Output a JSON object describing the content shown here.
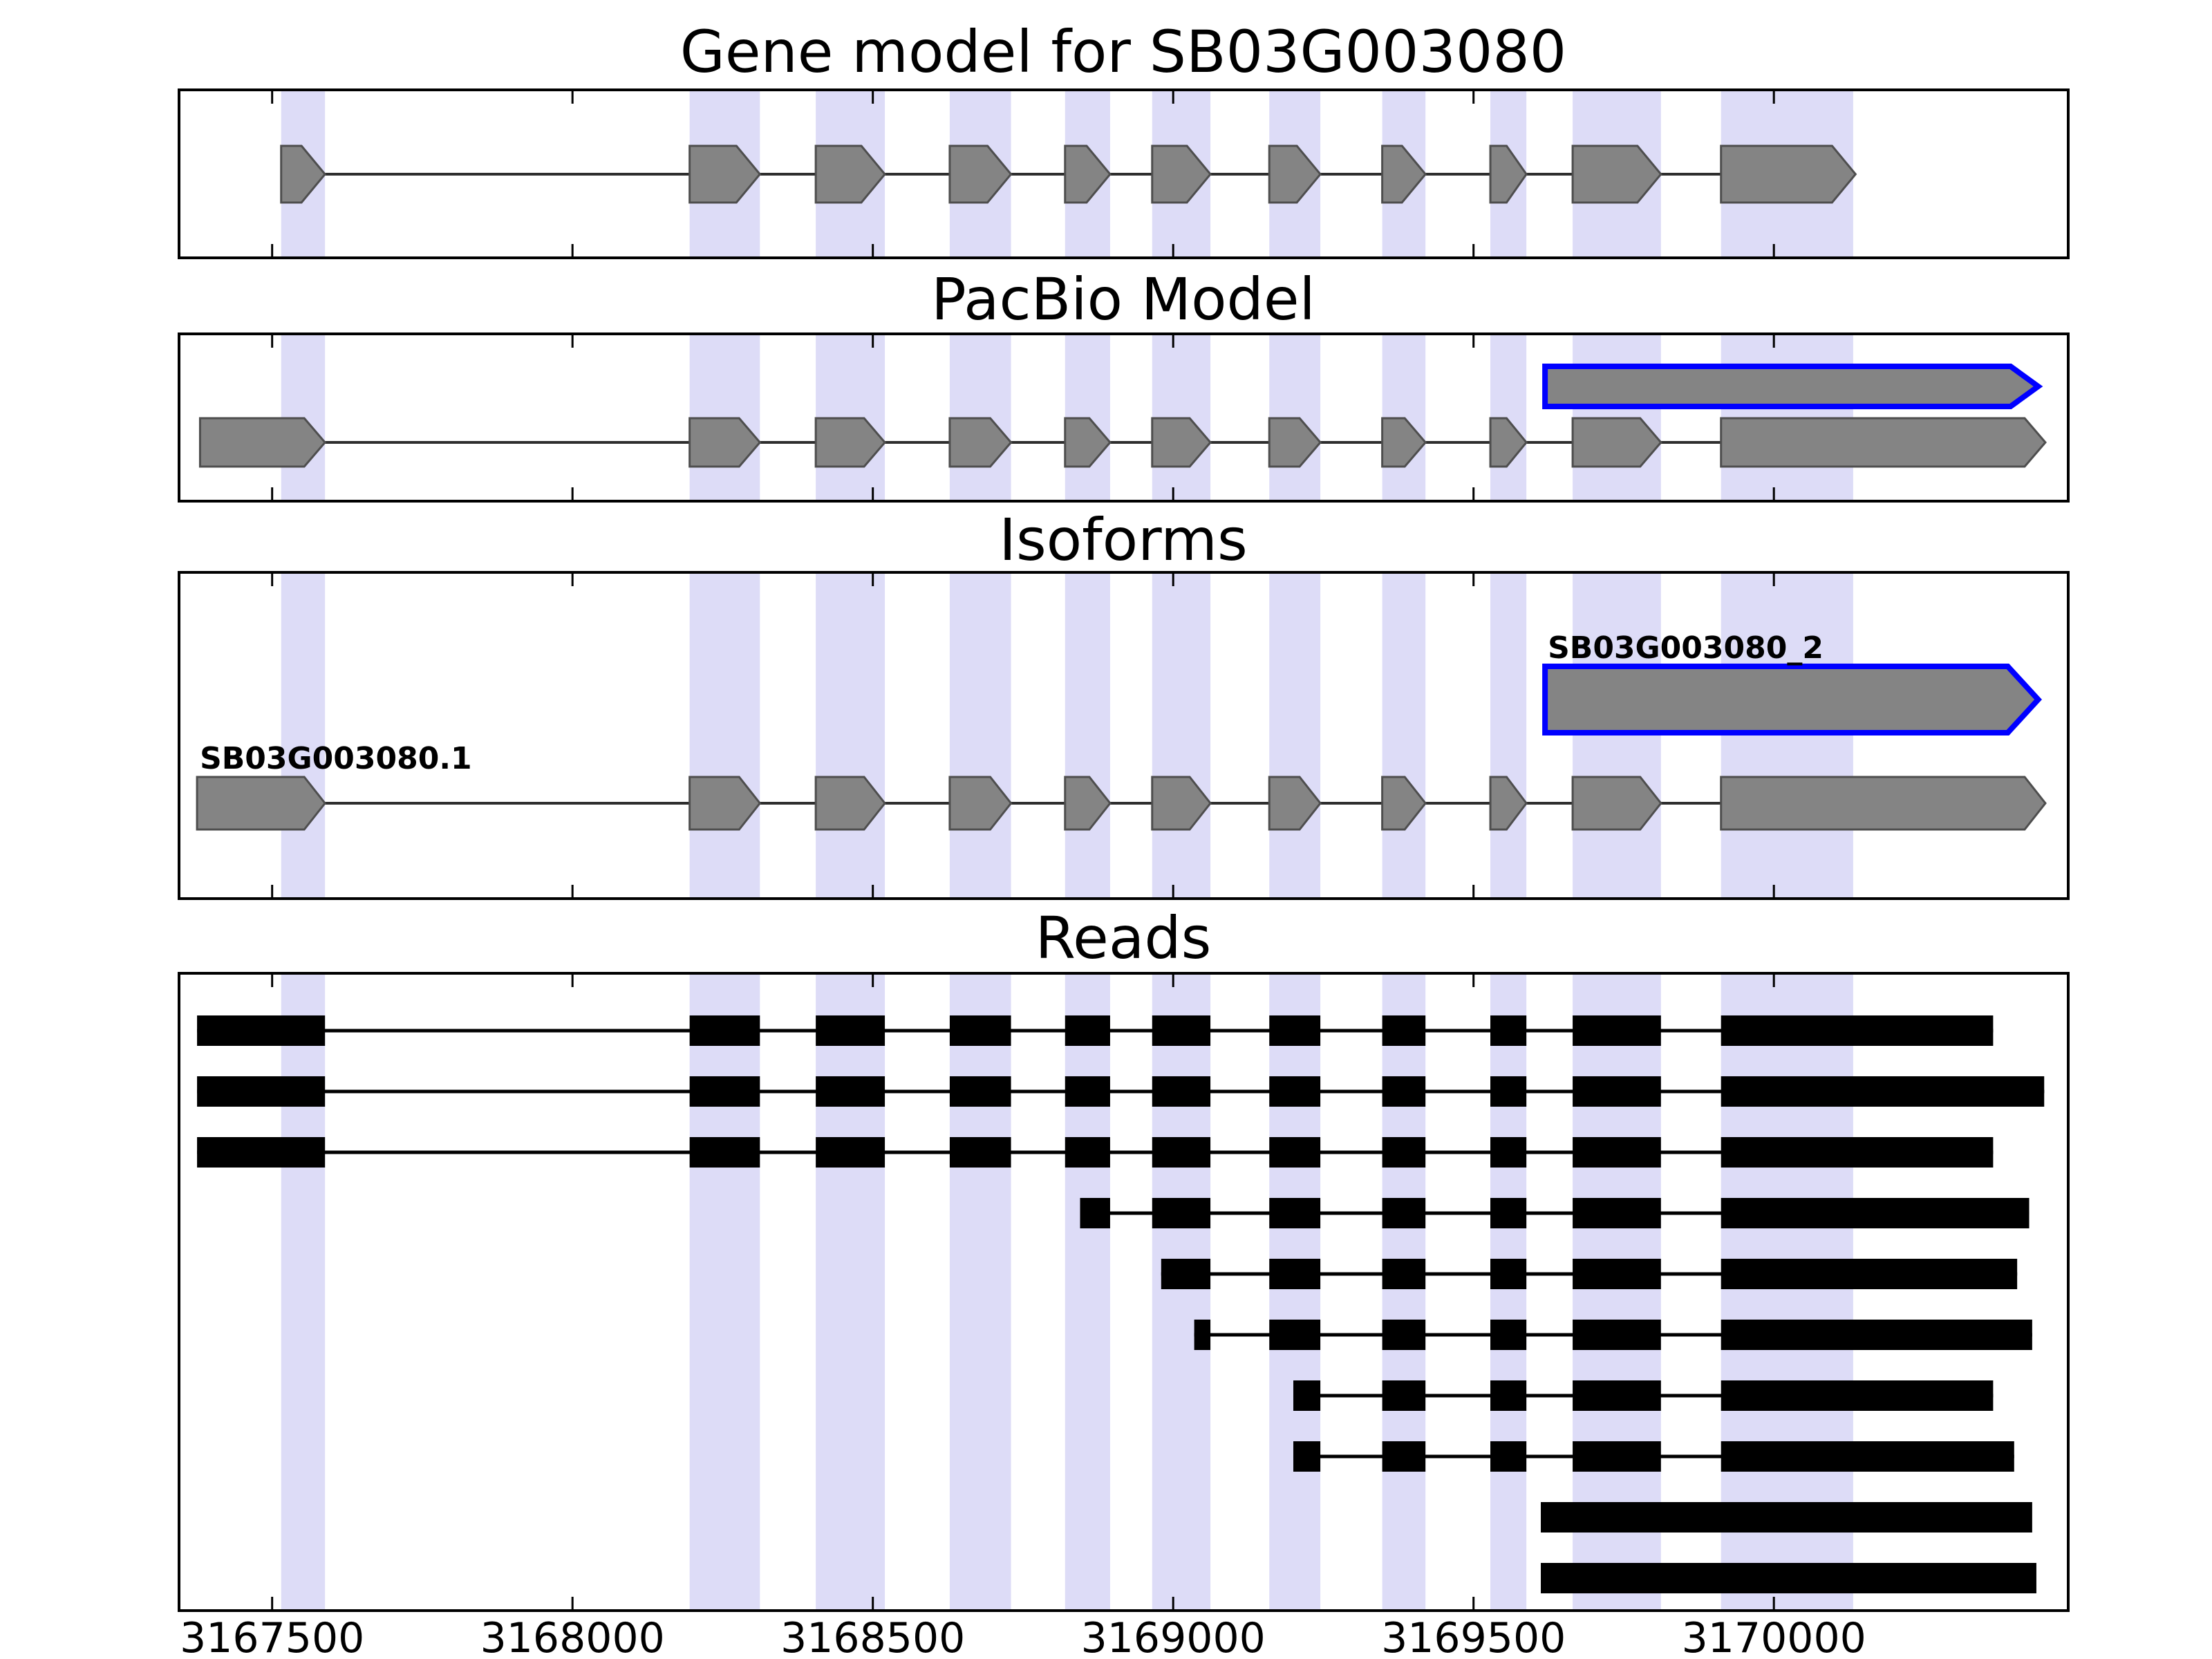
{
  "chart_data": {
    "type": "gene-structure-tracks",
    "colors": {
      "background": "#ffffff",
      "exon_fill": "#848484",
      "exon_edge": "#4e4e4e",
      "intron_line": "#2e2e2e",
      "highlight_band": "#dddcf7",
      "novel_outline": "#0000ff",
      "read_fill": "#000000",
      "axis": "#000000"
    },
    "x_axis": {
      "range": [
        3167345,
        3170490
      ],
      "tick_values": [
        3167500,
        3168000,
        3168500,
        3169000,
        3169500,
        3170000
      ]
    },
    "highlight_regions": [
      [
        3167515,
        3167588
      ],
      [
        3168195,
        3168312
      ],
      [
        3168405,
        3168520
      ],
      [
        3168628,
        3168730
      ],
      [
        3168820,
        3168895
      ],
      [
        3168965,
        3169062
      ],
      [
        3169160,
        3169245
      ],
      [
        3169348,
        3169420
      ],
      [
        3169528,
        3169588
      ],
      [
        3169665,
        3169812
      ],
      [
        3169912,
        3170132
      ]
    ],
    "tracks": {
      "gene_model": {
        "title": "Gene model for SB03G003080",
        "features": [
          {
            "style": "gene",
            "exons": [
              [
                3167515,
                3167588
              ],
              [
                3168195,
                3168312
              ],
              [
                3168405,
                3168520
              ],
              [
                3168628,
                3168730
              ],
              [
                3168820,
                3168895
              ],
              [
                3168965,
                3169062
              ],
              [
                3169160,
                3169245
              ],
              [
                3169348,
                3169420
              ],
              [
                3169528,
                3169588
              ],
              [
                3169665,
                3169812
              ],
              [
                3169912,
                3170136
              ]
            ]
          }
        ]
      },
      "pacbio_model": {
        "title": "PacBio Model",
        "features": [
          {
            "style": "novel",
            "exons": [
              [
                3169619,
                3170440
              ]
            ]
          },
          {
            "style": "gene",
            "exons": [
              [
                3167380,
                3167588
              ],
              [
                3168195,
                3168312
              ],
              [
                3168405,
                3168520
              ],
              [
                3168628,
                3168730
              ],
              [
                3168820,
                3168895
              ],
              [
                3168965,
                3169062
              ],
              [
                3169160,
                3169245
              ],
              [
                3169348,
                3169420
              ],
              [
                3169528,
                3169588
              ],
              [
                3169665,
                3169812
              ],
              [
                3169912,
                3170452
              ]
            ]
          }
        ]
      },
      "isoforms": {
        "title": "Isoforms",
        "features": [
          {
            "style": "novel",
            "label": "SB03G003080_2",
            "exons": [
              [
                3169619,
                3170440
              ]
            ]
          },
          {
            "style": "gene",
            "label": "SB03G003080.1",
            "exons": [
              [
                3167375,
                3167588
              ],
              [
                3168195,
                3168312
              ],
              [
                3168405,
                3168520
              ],
              [
                3168628,
                3168730
              ],
              [
                3168820,
                3168895
              ],
              [
                3168965,
                3169062
              ],
              [
                3169160,
                3169245
              ],
              [
                3169348,
                3169420
              ],
              [
                3169528,
                3169588
              ],
              [
                3169665,
                3169812
              ],
              [
                3169912,
                3170452
              ]
            ]
          }
        ]
      },
      "reads": {
        "title": "Reads",
        "features": [
          {
            "style": "read",
            "exons": [
              [
                3167375,
                3167588
              ],
              [
                3168195,
                3168312
              ],
              [
                3168405,
                3168520
              ],
              [
                3168628,
                3168730
              ],
              [
                3168820,
                3168895
              ],
              [
                3168965,
                3169062
              ],
              [
                3169160,
                3169245
              ],
              [
                3169348,
                3169420
              ],
              [
                3169528,
                3169588
              ],
              [
                3169665,
                3169812
              ],
              [
                3169912,
                3170365
              ]
            ]
          },
          {
            "style": "read",
            "exons": [
              [
                3167375,
                3167588
              ],
              [
                3168195,
                3168312
              ],
              [
                3168405,
                3168520
              ],
              [
                3168628,
                3168730
              ],
              [
                3168820,
                3168895
              ],
              [
                3168965,
                3169062
              ],
              [
                3169160,
                3169245
              ],
              [
                3169348,
                3169420
              ],
              [
                3169528,
                3169588
              ],
              [
                3169665,
                3169812
              ],
              [
                3169912,
                3170450
              ]
            ]
          },
          {
            "style": "read",
            "exons": [
              [
                3167375,
                3167588
              ],
              [
                3168195,
                3168312
              ],
              [
                3168405,
                3168520
              ],
              [
                3168628,
                3168730
              ],
              [
                3168820,
                3168895
              ],
              [
                3168965,
                3169062
              ],
              [
                3169160,
                3169245
              ],
              [
                3169348,
                3169420
              ],
              [
                3169528,
                3169588
              ],
              [
                3169665,
                3169812
              ],
              [
                3169912,
                3170365
              ]
            ]
          },
          {
            "style": "read",
            "exons": [
              [
                3168845,
                3168895
              ],
              [
                3168965,
                3169062
              ],
              [
                3169160,
                3169245
              ],
              [
                3169348,
                3169420
              ],
              [
                3169528,
                3169588
              ],
              [
                3169665,
                3169812
              ],
              [
                3169912,
                3170425
              ]
            ]
          },
          {
            "style": "read",
            "exons": [
              [
                3168980,
                3169062
              ],
              [
                3169160,
                3169245
              ],
              [
                3169348,
                3169420
              ],
              [
                3169528,
                3169588
              ],
              [
                3169665,
                3169812
              ],
              [
                3169912,
                3170405
              ]
            ]
          },
          {
            "style": "read",
            "exons": [
              [
                3169035,
                3169062
              ],
              [
                3169160,
                3169245
              ],
              [
                3169348,
                3169420
              ],
              [
                3169528,
                3169588
              ],
              [
                3169665,
                3169812
              ],
              [
                3169912,
                3170430
              ]
            ]
          },
          {
            "style": "read",
            "exons": [
              [
                3169200,
                3169245
              ],
              [
                3169348,
                3169420
              ],
              [
                3169528,
                3169588
              ],
              [
                3169665,
                3169812
              ],
              [
                3169912,
                3170365
              ]
            ]
          },
          {
            "style": "read",
            "exons": [
              [
                3169200,
                3169245
              ],
              [
                3169348,
                3169420
              ],
              [
                3169528,
                3169588
              ],
              [
                3169665,
                3169812
              ],
              [
                3169912,
                3170400
              ]
            ]
          },
          {
            "style": "read",
            "exons": [
              [
                3169612,
                3170430
              ]
            ]
          },
          {
            "style": "read",
            "exons": [
              [
                3169612,
                3170437
              ]
            ]
          }
        ]
      }
    }
  }
}
